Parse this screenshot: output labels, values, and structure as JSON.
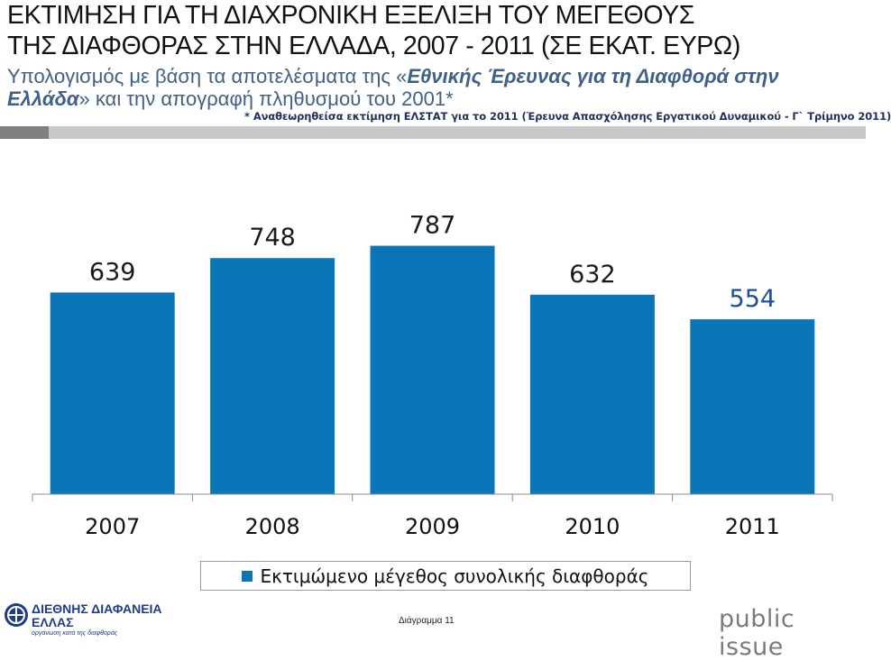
{
  "header": {
    "title_line1": "ΕΚΤΙΜΗΣΗ ΓΙΑ ΤΗ ΔΙΑΧΡΟΝΙΚΗ ΕΞΕΛΙΞΗ ΤΟΥ ΜΕΓΕΘΟΥΣ",
    "title_line2": "ΤΗΣ ΔΙΑΦΘΟΡΑΣ ΣΤΗΝ ΕΛΛΑΔΑ, 2007 - 2011 (ΣΕ ΕΚΑΤ. ΕΥΡΩ)",
    "subtitle_part1": "Υπολογισμός με βάση τα αποτελέσματα της «",
    "subtitle_em": "Εθνικής Έρευνας για τη Διαφθορά στην Ελλάδα",
    "subtitle_part2": "» και την απογραφή πληθυσμού του 2001*",
    "note": "* Αναθεωρηθείσα εκτίμηση ΕΛΣΤΑΤ για το 2011 (Έρευνα Απασχόλησης Εργατικού Δυναμικού - Γ` Τρίμηνο 2011)"
  },
  "colors": {
    "bar": "#0a76b8",
    "last_label": "#1a4fa0",
    "label": "#1a1a1a"
  },
  "chart_data": {
    "type": "bar",
    "categories": [
      "2007",
      "2008",
      "2009",
      "2010",
      "2011"
    ],
    "series": [
      {
        "name": "Εκτιμώμενο μέγεθος συνολικής διαφθοράς",
        "values": [
          639,
          748,
          787,
          632,
          554
        ]
      }
    ],
    "ylim": [
      0,
      800
    ],
    "grid": false,
    "legend_position": "bottom"
  },
  "legend": {
    "label": "Εκτιμώμενο μέγεθος συνολικής διαφθοράς"
  },
  "footer": {
    "logo_line1": "ΔΙΕΘΝΗΣ ΔΙΑΦΑΝΕΙΑ",
    "logo_line2": "ΕΛΛΑΣ",
    "logo_tagline": "οργάνωση κατά της διαφθοράς",
    "caption": "Διάγραμμα 11",
    "brand": "public issue"
  }
}
